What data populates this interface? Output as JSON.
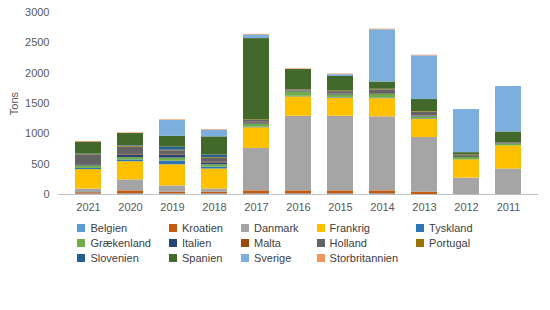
{
  "chart_data": {
    "type": "bar",
    "stacked": true,
    "y_label": "Tons",
    "legend": "bottom",
    "grid": false,
    "categories": [
      "2021",
      "2020",
      "2019",
      "2018",
      "2017",
      "2016",
      "2015",
      "2014",
      "2013",
      "2012",
      "2011"
    ],
    "ylim": [
      0,
      3000
    ],
    "yticks": [
      0,
      500,
      1000,
      1500,
      2000,
      2500,
      3000
    ],
    "series": [
      {
        "name": "Belgien",
        "color": "#5b9bd5",
        "values": [
          10,
          10,
          10,
          10,
          10,
          10,
          10,
          10,
          0,
          0,
          0
        ]
      },
      {
        "name": "Kroatien",
        "color": "#c55a11",
        "values": [
          20,
          50,
          30,
          30,
          50,
          50,
          50,
          50,
          40,
          0,
          0
        ]
      },
      {
        "name": "Danmark",
        "color": "#a5a5a5",
        "values": [
          60,
          180,
          100,
          50,
          700,
          1230,
          1230,
          1220,
          900,
          270,
          420
        ]
      },
      {
        "name": "Frankrig",
        "color": "#ffc000",
        "values": [
          320,
          300,
          350,
          330,
          340,
          320,
          300,
          300,
          300,
          300,
          380
        ]
      },
      {
        "name": "Tyskland",
        "color": "#2e75b6",
        "values": [
          20,
          30,
          60,
          30,
          10,
          10,
          10,
          10,
          10,
          0,
          0
        ]
      },
      {
        "name": "Grækenland",
        "color": "#70ad47",
        "values": [
          40,
          40,
          50,
          40,
          50,
          70,
          40,
          60,
          30,
          40,
          30
        ]
      },
      {
        "name": "Italien",
        "color": "#264478",
        "values": [
          20,
          40,
          50,
          30,
          20,
          10,
          10,
          10,
          10,
          0,
          0
        ]
      },
      {
        "name": "Malta",
        "color": "#9e480e",
        "values": [
          5,
          10,
          10,
          10,
          10,
          5,
          5,
          5,
          5,
          0,
          0
        ]
      },
      {
        "name": "Holland",
        "color": "#636363",
        "values": [
          150,
          120,
          60,
          70,
          30,
          20,
          40,
          60,
          60,
          30,
          20
        ]
      },
      {
        "name": "Portugal",
        "color": "#997300",
        "values": [
          10,
          15,
          10,
          10,
          10,
          5,
          10,
          10,
          10,
          10,
          0
        ]
      },
      {
        "name": "Slovenien",
        "color": "#255e91",
        "values": [
          10,
          10,
          50,
          40,
          0,
          0,
          0,
          0,
          0,
          0,
          0
        ]
      },
      {
        "name": "Spanien",
        "color": "#43682b",
        "values": [
          200,
          200,
          180,
          300,
          1340,
          330,
          240,
          120,
          200,
          40,
          180
        ]
      },
      {
        "name": "Sverige",
        "color": "#7cafdd",
        "values": [
          0,
          0,
          260,
          110,
          60,
          0,
          30,
          860,
          720,
          710,
          750
        ]
      },
      {
        "name": "Storbritannien",
        "color": "#f1975a",
        "values": [
          10,
          10,
          10,
          10,
          10,
          10,
          10,
          10,
          10,
          0,
          0
        ]
      }
    ]
  }
}
